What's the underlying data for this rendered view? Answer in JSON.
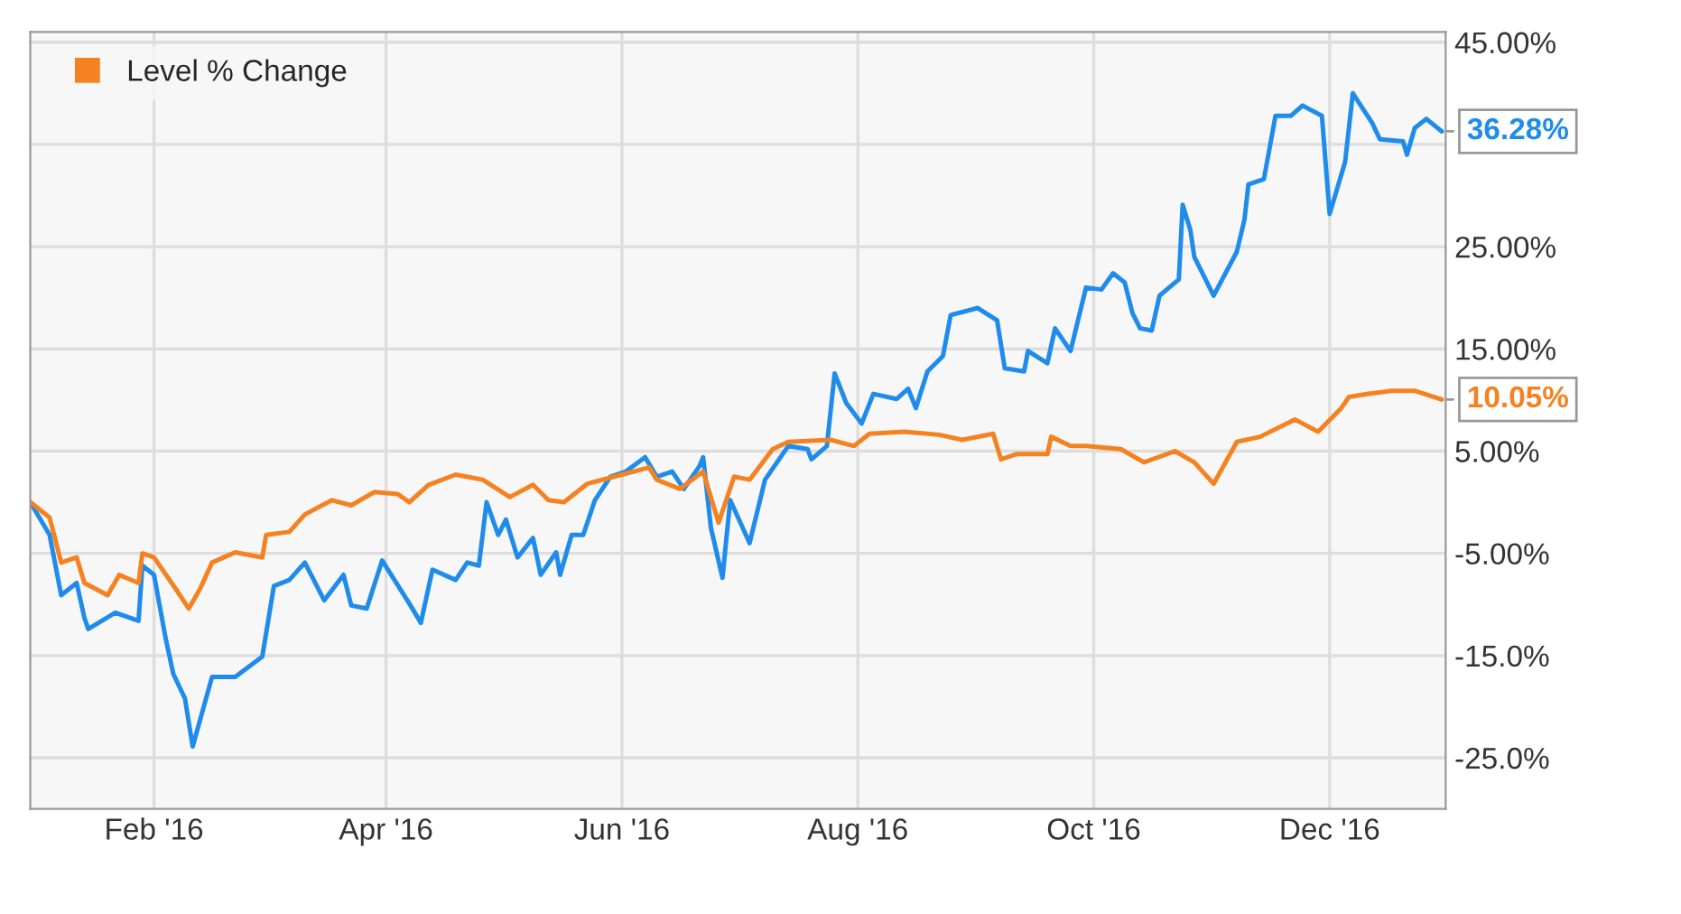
{
  "chart_data": {
    "type": "line",
    "legend": "top left",
    "grid": true,
    "line_style": "solid",
    "marker": "none",
    "xlim": [
      "2015-12-31",
      "2016-12-31"
    ],
    "xticks": [
      {
        "value": "2016-02-01",
        "label": "Feb '16"
      },
      {
        "value": "2016-04-01",
        "label": "Apr '16"
      },
      {
        "value": "2016-06-01",
        "label": "Jun '16"
      },
      {
        "value": "2016-08-01",
        "label": "Aug '16"
      },
      {
        "value": "2016-10-01",
        "label": "Oct '16"
      },
      {
        "value": "2016-12-01",
        "label": "Dec '16"
      }
    ],
    "ylim": [
      -30,
      46
    ],
    "yticks": [
      {
        "value": -25,
        "label": "-25.0%"
      },
      {
        "value": -15,
        "label": "-15.0%"
      },
      {
        "value": -5,
        "label": "-5.00%"
      },
      {
        "value": 5,
        "label": "5.00%"
      },
      {
        "value": 15,
        "label": "15.00%"
      },
      {
        "value": 25,
        "label": "25.00%"
      },
      {
        "value": 35,
        "label": null
      },
      {
        "value": 45,
        "label": "45.00%"
      }
    ],
    "series": [
      {
        "color": "#1f8ceb",
        "x": [
          "2015-12-31",
          "2016-01-05",
          "2016-01-08",
          "2016-01-12",
          "2016-01-14",
          "2016-01-15",
          "2016-01-22",
          "2016-01-28",
          "2016-01-29",
          "2016-02-01",
          "2016-02-04",
          "2016-02-06",
          "2016-02-09",
          "2016-02-11",
          "2016-02-16",
          "2016-02-22",
          "2016-02-29",
          "2016-03-03",
          "2016-03-07",
          "2016-03-11",
          "2016-03-16",
          "2016-03-21",
          "2016-03-23",
          "2016-03-27",
          "2016-03-31",
          "2016-04-07",
          "2016-04-10",
          "2016-04-13",
          "2016-04-19",
          "2016-04-22",
          "2016-04-25",
          "2016-04-27",
          "2016-04-30",
          "2016-05-02",
          "2016-05-05",
          "2016-05-09",
          "2016-05-11",
          "2016-05-15",
          "2016-05-16",
          "2016-05-19",
          "2016-05-22",
          "2016-05-25",
          "2016-05-29",
          "2016-06-02",
          "2016-06-07",
          "2016-06-10",
          "2016-06-14",
          "2016-06-17",
          "2016-06-21",
          "2016-06-22",
          "2016-06-24",
          "2016-06-27",
          "2016-06-29",
          "2016-07-04",
          "2016-07-08",
          "2016-07-14",
          "2016-07-19",
          "2016-07-20",
          "2016-07-24",
          "2016-07-26",
          "2016-07-29",
          "2016-08-02",
          "2016-08-05",
          "2016-08-11",
          "2016-08-14",
          "2016-08-16",
          "2016-08-19",
          "2016-08-23",
          "2016-08-25",
          "2016-09-01",
          "2016-09-06",
          "2016-09-08",
          "2016-09-13",
          "2016-09-14",
          "2016-09-19",
          "2016-09-21",
          "2016-09-25",
          "2016-09-29",
          "2016-10-03",
          "2016-10-06",
          "2016-10-09",
          "2016-10-11",
          "2016-10-13",
          "2016-10-16",
          "2016-10-18",
          "2016-10-23",
          "2016-10-24",
          "2016-10-26",
          "2016-10-27",
          "2016-11-01",
          "2016-11-07",
          "2016-11-09",
          "2016-11-10",
          "2016-11-14",
          "2016-11-17",
          "2016-11-21",
          "2016-11-24",
          "2016-11-29",
          "2016-12-01",
          "2016-12-05",
          "2016-12-07",
          "2016-12-12",
          "2016-12-14",
          "2016-12-20",
          "2016-12-21",
          "2016-12-23",
          "2016-12-26",
          "2016-12-30"
        ],
        "values": [
          0,
          -3.2,
          -9.1,
          -7.9,
          -11.3,
          -12.4,
          -10.8,
          -11.6,
          -6.2,
          -7.1,
          -13.3,
          -16.8,
          -19.2,
          -23.9,
          -17.1,
          -17.1,
          -15.1,
          -8.2,
          -7.6,
          -5.9,
          -9.6,
          -7.1,
          -10.1,
          -10.4,
          -5.7,
          -9.9,
          -11.8,
          -6.6,
          -7.6,
          -5.9,
          -6.2,
          0.0,
          -3.2,
          -1.7,
          -5.4,
          -3.5,
          -7.1,
          -4.9,
          -7.1,
          -3.2,
          -3.2,
          0.2,
          2.5,
          3.0,
          4.4,
          2.5,
          3.0,
          1.3,
          3.5,
          4.4,
          -2.5,
          -7.4,
          0.2,
          -4.0,
          2.2,
          5.5,
          5.2,
          4.2,
          5.5,
          12.6,
          9.7,
          7.7,
          10.6,
          10.1,
          11.1,
          9.2,
          12.8,
          14.3,
          18.3,
          19.0,
          17.8,
          13.1,
          12.8,
          14.8,
          13.6,
          17.0,
          14.8,
          21.0,
          20.8,
          22.4,
          21.5,
          18.5,
          17.0,
          16.8,
          20.2,
          21.8,
          29.1,
          26.6,
          24.0,
          20.2,
          24.5,
          27.7,
          31.1,
          31.6,
          37.8,
          37.8,
          38.8,
          37.8,
          28.2,
          33.3,
          40.0,
          37.1,
          35.5,
          35.3,
          34.0,
          36.6,
          37.5,
          36.28
        ]
      },
      {
        "name": "Level % Change",
        "color": "#f58220",
        "x": [
          "2015-12-31",
          "2016-01-05",
          "2016-01-08",
          "2016-01-12",
          "2016-01-14",
          "2016-01-20",
          "2016-01-23",
          "2016-01-28",
          "2016-01-29",
          "2016-02-01",
          "2016-02-07",
          "2016-02-10",
          "2016-02-13",
          "2016-02-16",
          "2016-02-22",
          "2016-02-29",
          "2016-03-01",
          "2016-03-07",
          "2016-03-11",
          "2016-03-18",
          "2016-03-23",
          "2016-03-29",
          "2016-04-04",
          "2016-04-07",
          "2016-04-12",
          "2016-04-19",
          "2016-04-26",
          "2016-05-03",
          "2016-05-09",
          "2016-05-13",
          "2016-05-17",
          "2016-05-23",
          "2016-06-01",
          "2016-06-08",
          "2016-06-10",
          "2016-06-16",
          "2016-06-22",
          "2016-06-26",
          "2016-06-30",
          "2016-07-04",
          "2016-07-10",
          "2016-07-14",
          "2016-07-25",
          "2016-07-31",
          "2016-08-04",
          "2016-08-13",
          "2016-08-22",
          "2016-08-28",
          "2016-09-05",
          "2016-09-07",
          "2016-09-11",
          "2016-09-19",
          "2016-09-20",
          "2016-09-25",
          "2016-09-29",
          "2016-10-08",
          "2016-10-14",
          "2016-10-22",
          "2016-10-27",
          "2016-11-01",
          "2016-11-07",
          "2016-11-13",
          "2016-11-22",
          "2016-11-28",
          "2016-12-04",
          "2016-12-06",
          "2016-12-11",
          "2016-12-17",
          "2016-12-23",
          "2016-12-30"
        ],
        "values": [
          0,
          -1.5,
          -5.9,
          -5.4,
          -7.9,
          -9.1,
          -7.1,
          -7.9,
          -5.0,
          -5.4,
          -8.7,
          -10.4,
          -8.4,
          -5.9,
          -4.9,
          -5.4,
          -3.2,
          -2.9,
          -1.2,
          0.2,
          -0.3,
          1.0,
          0.8,
          0,
          1.7,
          2.7,
          2.2,
          0.5,
          1.7,
          0.2,
          0.0,
          1.8,
          2.7,
          3.4,
          2.2,
          1.3,
          3.0,
          -2.0,
          2.5,
          2.2,
          5.2,
          5.9,
          6.1,
          5.5,
          6.7,
          6.9,
          6.6,
          6.1,
          6.7,
          4.2,
          4.7,
          4.7,
          6.4,
          5.5,
          5.5,
          5.2,
          3.9,
          5.0,
          3.9,
          1.8,
          5.9,
          6.4,
          8.1,
          6.9,
          9.2,
          10.3,
          10.6,
          10.9,
          10.9,
          10.05
        ]
      }
    ],
    "annotations": [
      {
        "text": "36.28%",
        "x": "2016-12-30",
        "y": 36.28
      },
      {
        "text": "10.05%",
        "x": "2016-12-30",
        "y": 10.05
      }
    ]
  }
}
